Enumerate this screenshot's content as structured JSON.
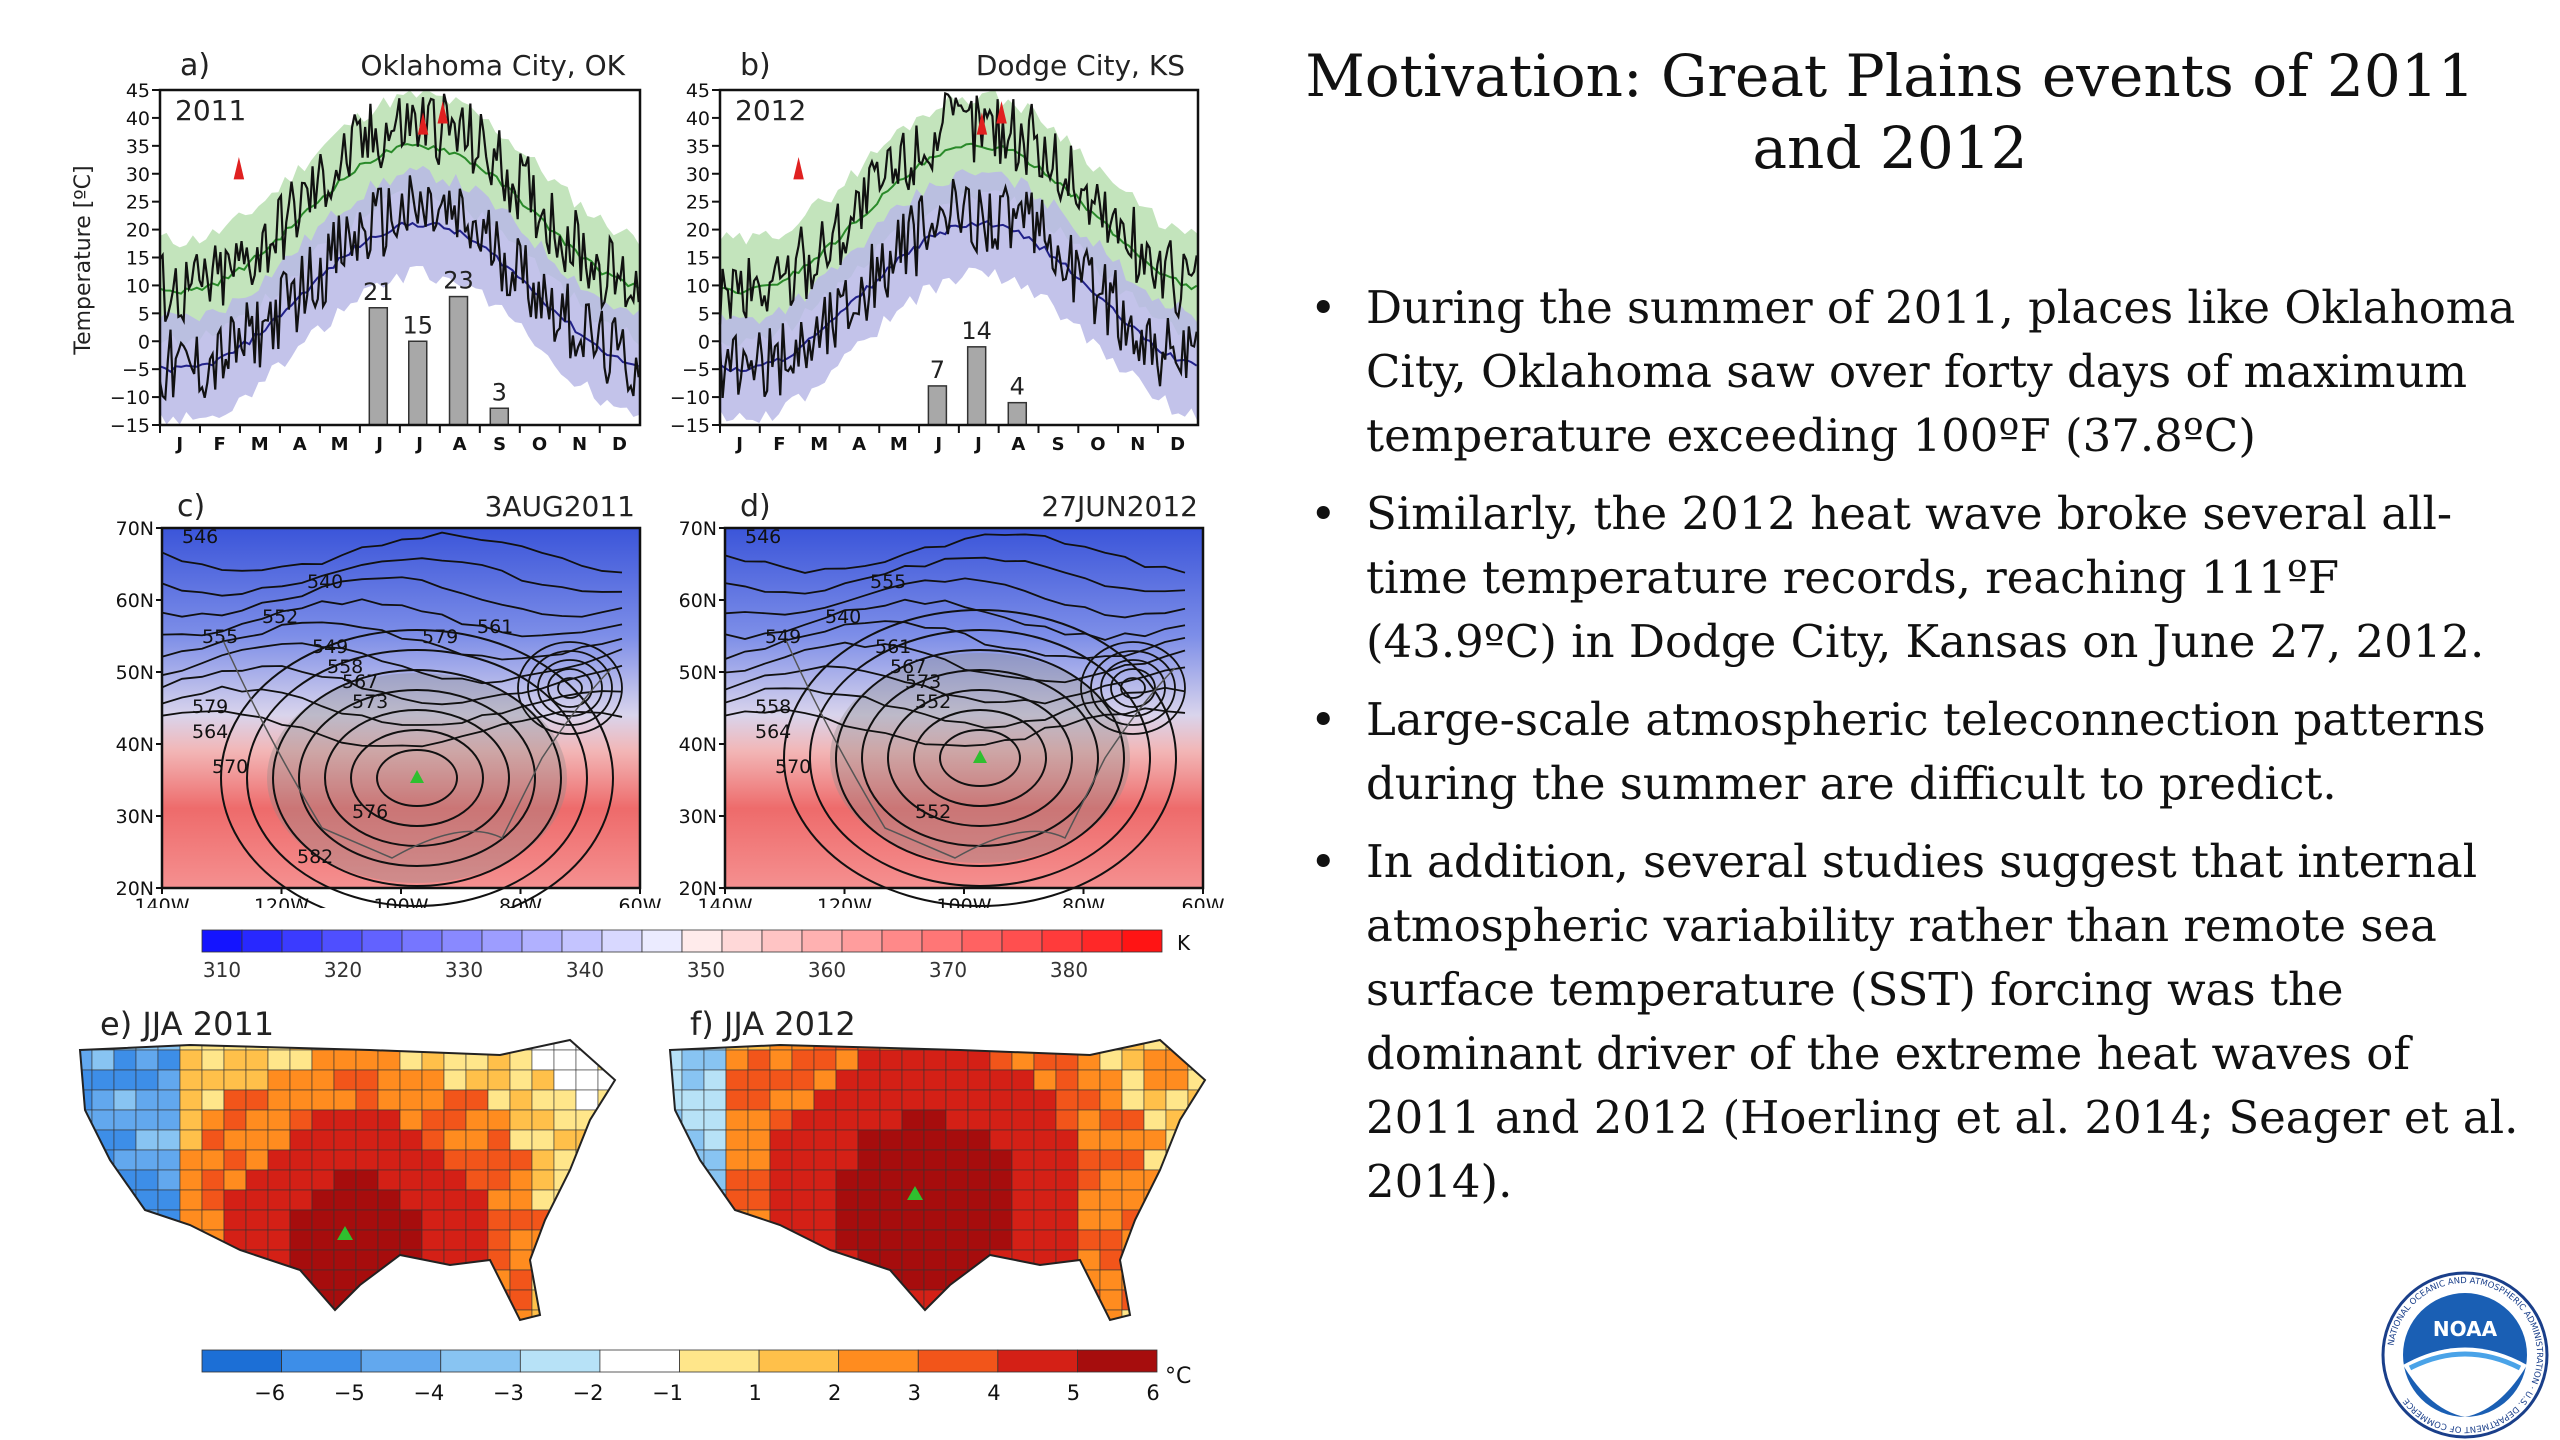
{
  "slide": {
    "title": "Motivation: Great Plains events of 2011 and 2012",
    "bullets": [
      "During the summer of 2011, places like Oklahoma City, Oklahoma saw over forty days of maximum temperature exceeding 100ºF (37.8ºC)",
      "Similarly, the 2012 heat wave broke several all-time temperature records, reaching 111ºF (43.9ºC) in Dodge City, Kansas on June 27, 2012.",
      "Large-scale atmospheric teleconnection patterns during the summer are difficult to predict.",
      "In addition, several studies suggest that internal atmospheric variability rather than remote sea surface temperature (SST) forcing was the dominant driver of the extreme heat waves of 2011 and 2012 (Hoerling et al. 2014; Seager et al. 2014)."
    ]
  },
  "figure": {
    "panel_a": {
      "label": "a)",
      "station": "Oklahoma City, OK",
      "year": "2011"
    },
    "panel_b": {
      "label": "b)",
      "station": "Dodge City, KS",
      "year": "2012"
    },
    "panel_c": {
      "label": "c)",
      "date": "3AUG2011"
    },
    "panel_d": {
      "label": "d)",
      "date": "27JUN2012"
    },
    "panel_e": {
      "label": "e)",
      "title": "JJA 2011"
    },
    "panel_f": {
      "label": "f)",
      "title": "JJA 2012"
    },
    "temp_axis_label": "Temperature [ºC]",
    "temp_ticks": [
      "45",
      "40",
      "35",
      "30",
      "25",
      "20",
      "15",
      "10",
      "5",
      "0",
      "−5",
      "−10",
      "−15"
    ],
    "month_ticks": [
      "J",
      "F",
      "M",
      "A",
      "M",
      "J",
      "J",
      "A",
      "S",
      "O",
      "N",
      "D"
    ],
    "lat_ticks": [
      "70N",
      "60N",
      "50N",
      "40N",
      "30N",
      "20N"
    ],
    "lon_ticks": [
      "140W",
      "120W",
      "100W",
      "80W",
      "60W"
    ],
    "kelvin_ticks": [
      "310",
      "320",
      "330",
      "340",
      "350",
      "360",
      "370",
      "380"
    ],
    "kelvin_unit": "K",
    "anom_ticks": [
      "−6",
      "−5",
      "−4",
      "−3",
      "−2",
      "−1",
      "1",
      "2",
      "3",
      "4",
      "5",
      "6"
    ],
    "anom_unit": "°C",
    "contours_c": [
      "546",
      "555",
      "552",
      "540",
      "549",
      "558",
      "567",
      "573",
      "579",
      "564",
      "570",
      "576",
      "582",
      "579",
      "561"
    ],
    "contours_d": [
      "546",
      "549",
      "540",
      "555",
      "561",
      "567",
      "573",
      "552",
      "558",
      "564",
      "570",
      "552"
    ]
  },
  "chart_data": [
    {
      "type": "bar",
      "title": "Oklahoma City, OK",
      "subtitle": "2011",
      "ylabel": "Temperature [ºC]",
      "ylim": [
        -15,
        45
      ],
      "categories": [
        "J",
        "J",
        "A",
        "S"
      ],
      "values": [
        21,
        15,
        23,
        3
      ]
    },
    {
      "type": "bar",
      "title": "Dodge City, KS",
      "subtitle": "2012",
      "ylabel": "Temperature [ºC]",
      "ylim": [
        -15,
        45
      ],
      "categories": [
        "J",
        "J",
        "A"
      ],
      "values": [
        7,
        14,
        4
      ]
    }
  ],
  "logo": {
    "text": "NOAA",
    "ring_text": "NATIONAL OCEANIC AND ATMOSPHERIC ADMINISTRATION · U.S. DEPARTMENT OF COMMERCE"
  },
  "colors": {
    "green_band": "#b9dfb0",
    "green_line": "#2a8a2a",
    "blue_band": "#b9b9e6",
    "blue_line": "#22228a",
    "bar_fill": "#a8a8a8",
    "record_red": "#e02020",
    "map_blue": "#4a5cd8",
    "map_red": "#e85050"
  }
}
